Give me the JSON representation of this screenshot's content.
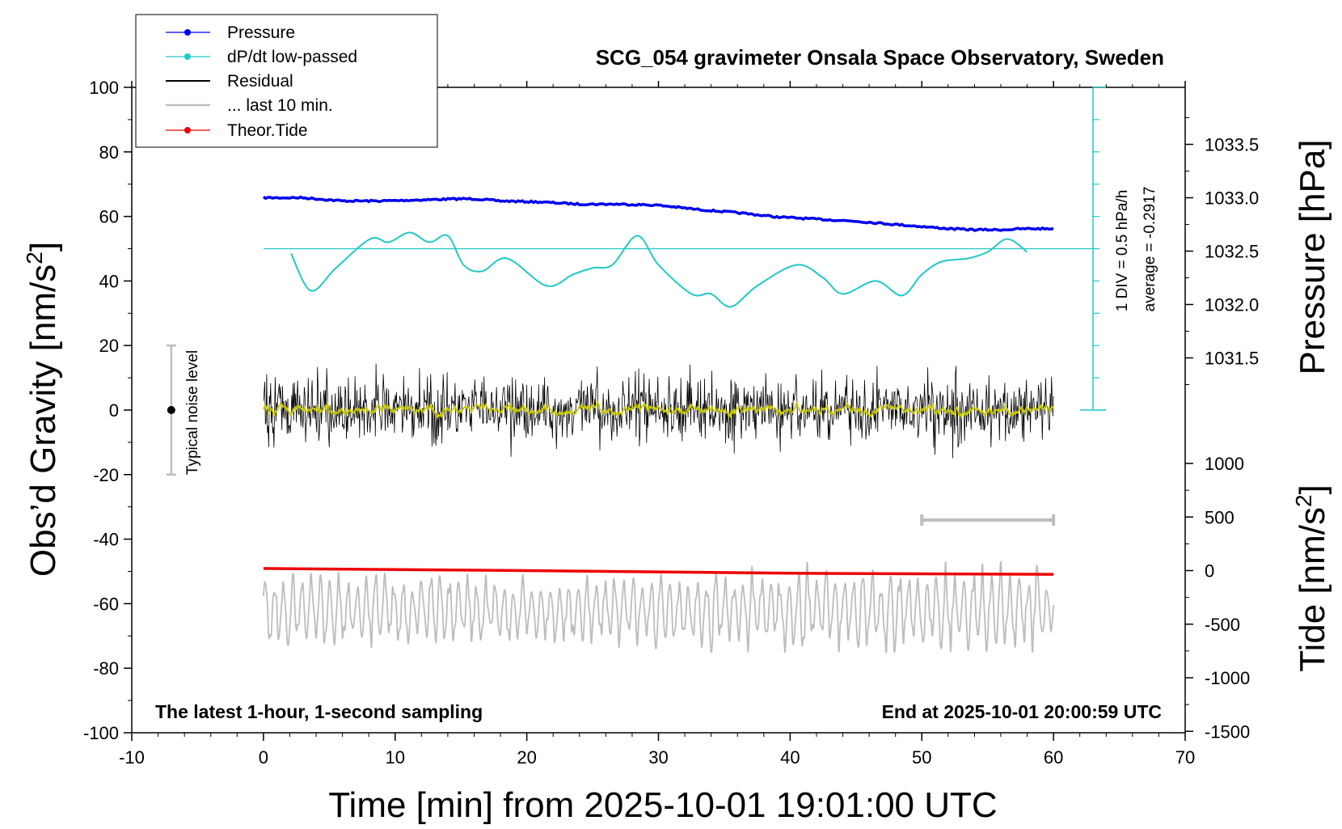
{
  "chart_data": {
    "type": "line",
    "title": "SCG_054 gravimeter Onsala Space Observatory, Sweden",
    "xlabel": "Time [min] from 2025-10-01 19:01:00 UTC",
    "ylabel": "Obs’d Gravity [nm/s²]",
    "ylabel_main": "Obs’d Gravity [nm/s",
    "ylabel_sup": "2",
    "ylabel_close": "]",
    "right_label_pressure": "Pressure [hPa]",
    "right_label_tide_main": "Tide [nm/s",
    "right_label_tide_sup": "2",
    "right_label_tide_close": "]",
    "xlim": [
      -10,
      70
    ],
    "ylim": [
      -100,
      100
    ],
    "x_ticks": [
      "-10",
      "0",
      "10",
      "20",
      "30",
      "40",
      "50",
      "60",
      "70"
    ],
    "y_ticks": [
      "-100",
      "-80",
      "-60",
      "-40",
      "-20",
      "0",
      "20",
      "40",
      "60",
      "80",
      "100"
    ],
    "pressure_axis": {
      "range": [
        1030.5,
        1033.9
      ],
      "ticks": [
        "1031.5",
        "1032.0",
        "1032.5",
        "1033.0",
        "1033.5"
      ]
    },
    "tide_axis": {
      "range": [
        -1500,
        1000
      ],
      "ticks": [
        "-1500",
        "-1000",
        "-500",
        "0",
        "500",
        "1000"
      ]
    },
    "legend_position": "top-left",
    "legend": [
      "Pressure",
      "dP/dt low-passed",
      "Residual",
      "... last 10 min.",
      "Theor.Tide"
    ],
    "colors": {
      "pressure": "#0000ee",
      "dpdt": "#22c8c8",
      "residual": "#000000",
      "residual_smooth": "#c8c800",
      "last10": "#bdbdbd",
      "tide": "#ee0000",
      "noise_bar": "#bdbdbd"
    },
    "series": [
      {
        "name": "Pressure",
        "axis": "pressure",
        "x": [
          0,
          3,
          6,
          9,
          12,
          15,
          16,
          18,
          21,
          24,
          27,
          30,
          33,
          36,
          39,
          42,
          45,
          48,
          50,
          52,
          54,
          56,
          58,
          60
        ],
        "values": [
          1033.0,
          1033.0,
          1032.97,
          1032.97,
          1032.98,
          1032.99,
          1032.99,
          1032.97,
          1032.96,
          1032.94,
          1032.94,
          1032.93,
          1032.89,
          1032.86,
          1032.82,
          1032.8,
          1032.78,
          1032.75,
          1032.73,
          1032.71,
          1032.7,
          1032.7,
          1032.71,
          1032.71
        ]
      },
      {
        "name": "dP/dt low-passed",
        "axis": "gravity",
        "x": [
          2.1,
          3.6,
          5.5,
          8.1,
          9.5,
          11.1,
          12.6,
          14,
          15.2,
          16.6,
          18.5,
          21.5,
          23.5,
          25,
          26.5,
          28.4,
          30,
          32.5,
          34,
          35.5,
          37.5,
          40.5,
          42.5,
          44,
          46.5,
          48.5,
          50,
          51.5,
          53.5,
          55,
          56.5,
          58
        ],
        "values": [
          48.5,
          37.0,
          44.0,
          53.0,
          52.0,
          55.0,
          52.0,
          54.0,
          45.0,
          43.0,
          47.0,
          38.5,
          42.0,
          44.0,
          45.0,
          54.0,
          45.0,
          36.0,
          36.0,
          32.0,
          38.5,
          45.0,
          41.0,
          36.0,
          40.0,
          35.5,
          42.0,
          46.0,
          47.0,
          49.0,
          53.0,
          49.0
        ]
      },
      {
        "name": "Theor.Tide",
        "axis": "tide",
        "x": [
          0,
          20,
          40,
          60
        ],
        "values": [
          20,
          0,
          -25,
          -35
        ]
      }
    ],
    "annotations": {
      "noise_label": "Typical noise level",
      "noise_center": 0,
      "noise_range": [
        -20,
        20
      ],
      "noise_x": -7,
      "scale_div": "1 DIV = 0.5 hPa/h",
      "average": "average = -0.2917",
      "last10_marker_x": [
        50,
        60
      ],
      "footer_left": "The latest 1-hour, 1-second sampling",
      "footer_right": "End at 2025-10-01 20:00:59 UTC"
    },
    "residual": {
      "center": 0,
      "noise_sd": 4,
      "spike_max": 15
    },
    "last10_trace": {
      "center": -62,
      "amplitude_range": [
        -75,
        -47
      ]
    },
    "grid": false
  }
}
